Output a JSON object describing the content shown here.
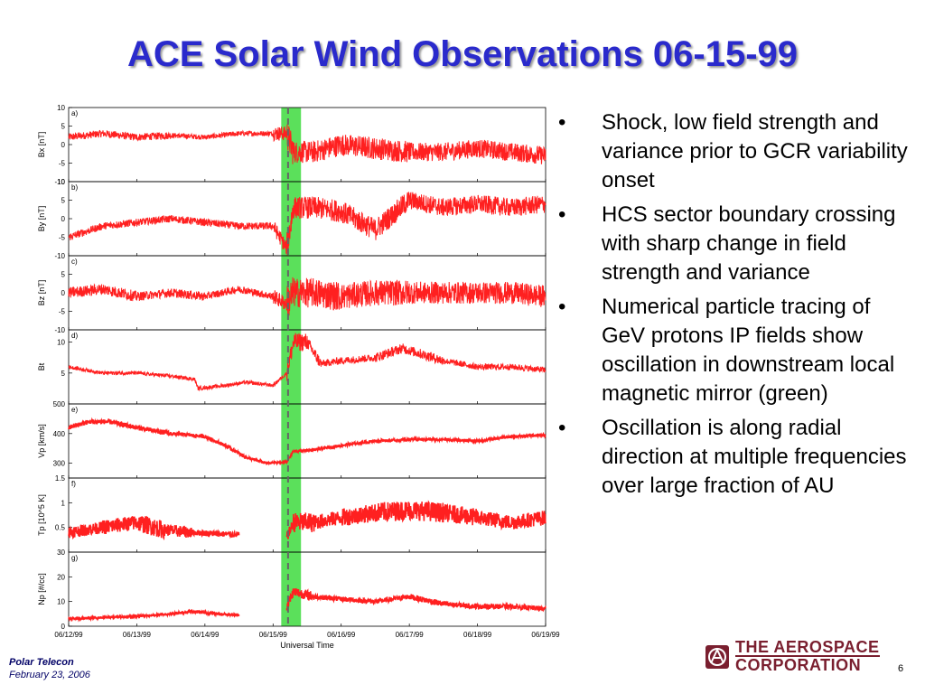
{
  "slide": {
    "title": "ACE Solar Wind Observations 06-15-99",
    "bullets": [
      "Shock, low field strength and variance prior to GCR variability onset",
      "HCS sector boundary crossing with sharp change in field strength and variance",
      "Numerical particle tracing of GeV protons IP fields show oscillation in downstream local magnetic mirror (green)",
      "Oscillation is along radial direction at multiple frequencies over large fraction of AU"
    ],
    "bullet_symbol": "•",
    "footer": {
      "org": "Polar Telecon",
      "date": "February 23, 2006",
      "page_number": "6",
      "logo_line1": "THE AEROSPACE",
      "logo_line2": "CORPORATION",
      "logo_icon": "aerospace-logo-icon"
    }
  },
  "chart_data": {
    "type": "line",
    "xlabel": "Universal Time",
    "x_ticks": [
      "06/12/99",
      "06/13/99",
      "06/14/99",
      "06/15/99",
      "06/16/99",
      "06/17/99",
      "06/18/99",
      "06/19/99"
    ],
    "xlim": [
      0,
      7
    ],
    "shock_marker_day": 3.22,
    "highlight_interval_days": [
      3.12,
      3.41
    ],
    "colors": {
      "series": "#ff2020",
      "highlight": "#5be05b",
      "marker": "#666666"
    },
    "panels": [
      {
        "tag": "a)",
        "ylabel": "Bx  [nT]",
        "ylim": [
          -10,
          10
        ],
        "yticks": [
          10,
          5,
          0,
          -5,
          -10
        ],
        "shape": [
          [
            0,
            2
          ],
          [
            0.5,
            3
          ],
          [
            1.0,
            2
          ],
          [
            1.5,
            2.5
          ],
          [
            2.0,
            2
          ],
          [
            2.5,
            3
          ],
          [
            3.0,
            3
          ],
          [
            3.2,
            3
          ],
          [
            3.3,
            -2
          ],
          [
            3.6,
            -2
          ],
          [
            4.0,
            0
          ],
          [
            4.5,
            -1
          ],
          [
            5.0,
            -2
          ],
          [
            5.5,
            -2
          ],
          [
            6.0,
            -1
          ],
          [
            6.5,
            -2
          ],
          [
            7.0,
            -3
          ]
        ],
        "noise": [
          1.0,
          1.0,
          1.0,
          0.7,
          0.7,
          0.7,
          2.0,
          4.0,
          3.0,
          3.0,
          3.0,
          3.0,
          2.5,
          2.5
        ]
      },
      {
        "tag": "b)",
        "ylabel": "By  [nT]",
        "ylim": [
          -10,
          10
        ],
        "yticks": [
          10,
          5,
          0,
          -5,
          -10
        ],
        "shape": [
          [
            0,
            -5
          ],
          [
            0.5,
            -2
          ],
          [
            1.0,
            -1
          ],
          [
            1.5,
            0
          ],
          [
            2.0,
            -1
          ],
          [
            2.5,
            -2
          ],
          [
            3.0,
            -2
          ],
          [
            3.2,
            -8
          ],
          [
            3.3,
            3
          ],
          [
            3.6,
            3
          ],
          [
            4.0,
            2
          ],
          [
            4.5,
            -3
          ],
          [
            5.0,
            5
          ],
          [
            5.5,
            3
          ],
          [
            6.0,
            4
          ],
          [
            6.5,
            3
          ],
          [
            7.0,
            4
          ]
        ],
        "noise": [
          1.0,
          1.0,
          1.0,
          1.0,
          1.0,
          1.0,
          2.0,
          4.0,
          3.0,
          3.0,
          3.0,
          3.0,
          2.5,
          2.5
        ]
      },
      {
        "tag": "c)",
        "ylabel": "Bz  [nT]",
        "ylim": [
          -10,
          10
        ],
        "yticks": [
          5,
          0,
          -5,
          -10
        ],
        "shape": [
          [
            0,
            0
          ],
          [
            0.5,
            1
          ],
          [
            1.0,
            -1
          ],
          [
            1.5,
            0
          ],
          [
            2.0,
            -1
          ],
          [
            2.5,
            1
          ],
          [
            3.0,
            -1
          ],
          [
            3.2,
            -3
          ],
          [
            3.3,
            0
          ],
          [
            3.6,
            0
          ],
          [
            4.0,
            -1
          ],
          [
            4.5,
            0
          ],
          [
            5.0,
            0
          ],
          [
            5.5,
            0
          ],
          [
            6.0,
            0
          ],
          [
            6.5,
            0
          ],
          [
            7.0,
            -1
          ]
        ],
        "noise": [
          1.5,
          1.5,
          1.2,
          1.2,
          1.0,
          1.0,
          2.0,
          5.0,
          4.0,
          4.0,
          3.5,
          3.5,
          3.0,
          3.0
        ]
      },
      {
        "tag": "d)",
        "ylabel": "Bt",
        "ylim": [
          0,
          12
        ],
        "yticks": [
          10,
          5
        ],
        "shape": [
          [
            0,
            6
          ],
          [
            0.5,
            5
          ],
          [
            1.0,
            5
          ],
          [
            1.5,
            4.5
          ],
          [
            1.85,
            4
          ],
          [
            1.9,
            2.5
          ],
          [
            2.3,
            3
          ],
          [
            2.6,
            3.5
          ],
          [
            3.0,
            3
          ],
          [
            3.2,
            5
          ],
          [
            3.3,
            10
          ],
          [
            3.5,
            10
          ],
          [
            3.7,
            6.5
          ],
          [
            4.0,
            7
          ],
          [
            4.5,
            7.5
          ],
          [
            4.9,
            9
          ],
          [
            5.5,
            7
          ],
          [
            6.0,
            6
          ],
          [
            6.5,
            6
          ],
          [
            7.0,
            5.5
          ]
        ],
        "noise": [
          0.3,
          0.3,
          0.3,
          0.3,
          0.3,
          0.3,
          0.3,
          0.3,
          0.3,
          1.5,
          1.5,
          1.0,
          0.6,
          0.6,
          0.8,
          0.8,
          0.5,
          0.5,
          0.5
        ]
      },
      {
        "tag": "e)",
        "ylabel": "Vp [km/s]",
        "ylim": [
          250,
          500
        ],
        "yticks": [
          500,
          400,
          300
        ],
        "shape": [
          [
            0,
            420
          ],
          [
            0.3,
            440
          ],
          [
            0.6,
            440
          ],
          [
            1.0,
            420
          ],
          [
            1.5,
            400
          ],
          [
            2.0,
            390
          ],
          [
            2.3,
            360
          ],
          [
            2.6,
            320
          ],
          [
            2.9,
            300
          ],
          [
            3.2,
            305
          ],
          [
            3.3,
            340
          ],
          [
            3.6,
            345
          ],
          [
            4.0,
            360
          ],
          [
            4.5,
            375
          ],
          [
            5.0,
            380
          ],
          [
            5.5,
            380
          ],
          [
            6.0,
            375
          ],
          [
            6.5,
            390
          ],
          [
            7.0,
            395
          ]
        ],
        "noise": [
          8,
          8,
          8,
          8,
          6,
          6,
          6,
          5,
          4,
          4,
          4,
          5,
          5,
          5,
          5,
          5,
          5,
          5
        ]
      },
      {
        "tag": "f)",
        "ylabel": "Tp [10^5 K]",
        "ylim": [
          0,
          1.5
        ],
        "yticks": [
          1.5,
          1,
          0.5
        ],
        "shape": [
          [
            0,
            0.4
          ],
          [
            0.5,
            0.5
          ],
          [
            1.0,
            0.6
          ],
          [
            1.4,
            0.45
          ],
          [
            1.8,
            0.4
          ],
          [
            2.5,
            0.35
          ]
        ],
        "noise": [
          0.12,
          0.15,
          0.18,
          0.12,
          0.06
        ],
        "shape2": [
          [
            3.2,
            0.3
          ],
          [
            3.3,
            0.6
          ],
          [
            3.6,
            0.6
          ],
          [
            4.0,
            0.7
          ],
          [
            4.5,
            0.8
          ],
          [
            5.0,
            0.85
          ],
          [
            5.5,
            0.8
          ],
          [
            6.0,
            0.7
          ],
          [
            6.5,
            0.6
          ],
          [
            7.0,
            0.7
          ]
        ],
        "noise2": [
          0.1,
          0.2,
          0.15,
          0.18,
          0.2,
          0.2,
          0.18,
          0.15,
          0.15
        ]
      },
      {
        "tag": "g)",
        "ylabel": "Np [#/cc]",
        "ylim": [
          0,
          30
        ],
        "yticks": [
          30,
          20,
          10,
          0
        ],
        "shape": [
          [
            0,
            3
          ],
          [
            0.5,
            3.5
          ],
          [
            1.0,
            4
          ],
          [
            1.5,
            5
          ],
          [
            1.8,
            6
          ],
          [
            2.2,
            5
          ],
          [
            2.5,
            4.5
          ]
        ],
        "noise": [
          0.5,
          0.5,
          0.5,
          0.6,
          0.6,
          0.5
        ],
        "shape2": [
          [
            3.2,
            8
          ],
          [
            3.3,
            14
          ],
          [
            3.6,
            12
          ],
          [
            4.0,
            11
          ],
          [
            4.5,
            10
          ],
          [
            5.0,
            12
          ],
          [
            5.5,
            9
          ],
          [
            6.0,
            8
          ],
          [
            6.5,
            8
          ],
          [
            7.0,
            7
          ]
        ],
        "noise2": [
          2,
          2,
          1,
          1,
          1,
          1.2,
          1,
          1,
          1
        ]
      }
    ]
  }
}
